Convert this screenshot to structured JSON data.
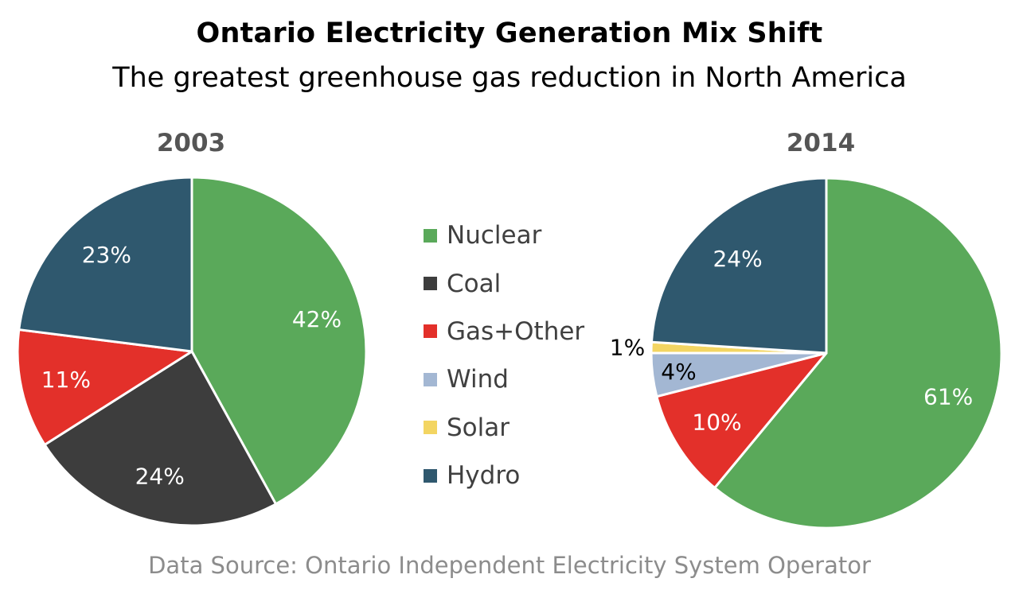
{
  "title": "Ontario Electricity Generation Mix Shift",
  "subtitle": "The greatest greenhouse gas reduction in North America",
  "source": "Data Source: Ontario Independent Electricity System Operator",
  "legend": [
    {
      "name": "Nuclear",
      "color": "#5aa95a"
    },
    {
      "name": "Coal",
      "color": "#3d3d3d"
    },
    {
      "name": "Gas+Other",
      "color": "#e3302a"
    },
    {
      "name": "Wind",
      "color": "#a3b7d3"
    },
    {
      "name": "Solar",
      "color": "#f3d562"
    },
    {
      "name": "Hydro",
      "color": "#2f586e"
    }
  ],
  "chart_data": [
    {
      "type": "pie",
      "title": "2003",
      "slices": [
        {
          "name": "Nuclear",
          "value": 42,
          "label": "42%",
          "color": "#5aa95a"
        },
        {
          "name": "Coal",
          "value": 24,
          "label": "24%",
          "color": "#3d3d3d"
        },
        {
          "name": "Gas+Other",
          "value": 11,
          "label": "11%",
          "color": "#e3302a"
        },
        {
          "name": "Hydro",
          "value": 23,
          "label": "23%",
          "color": "#2f586e"
        }
      ]
    },
    {
      "type": "pie",
      "title": "2014",
      "slices": [
        {
          "name": "Nuclear",
          "value": 61,
          "label": "61%",
          "color": "#5aa95a"
        },
        {
          "name": "Gas+Other",
          "value": 10,
          "label": "10%",
          "color": "#e3302a"
        },
        {
          "name": "Wind",
          "value": 4,
          "label": "4%",
          "color": "#a3b7d3"
        },
        {
          "name": "Solar",
          "value": 1,
          "label": "1%",
          "color": "#f3d562"
        },
        {
          "name": "Hydro",
          "value": 24,
          "label": "24%",
          "color": "#2f586e"
        }
      ]
    }
  ]
}
